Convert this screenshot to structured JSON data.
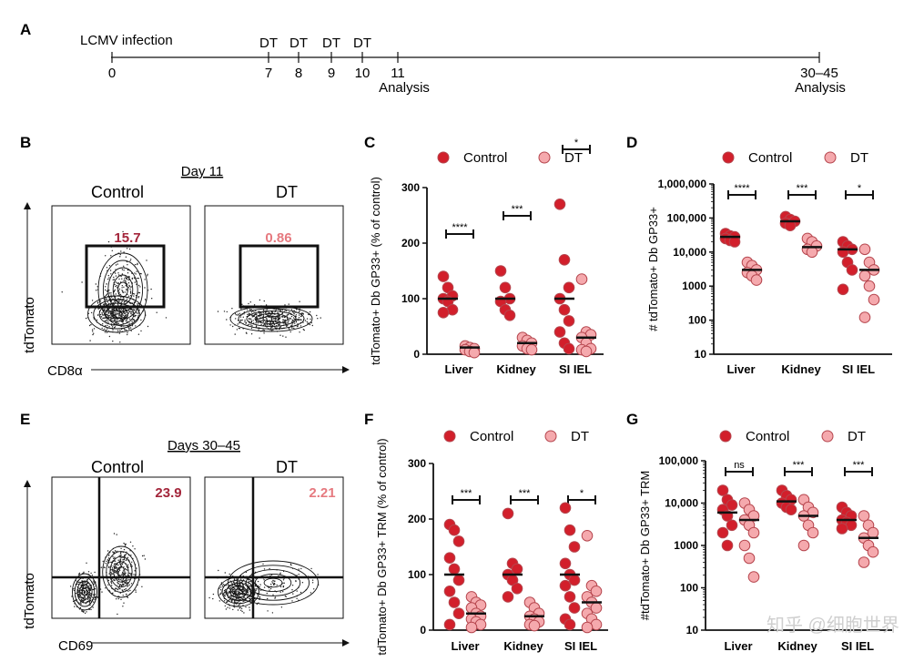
{
  "panel_letters": {
    "A": "A",
    "B": "B",
    "C": "C",
    "D": "D",
    "E": "E",
    "F": "F",
    "G": "G"
  },
  "timeline": {
    "infection_label": "LCMV infection",
    "ticks": [
      {
        "day": "0",
        "top": ""
      },
      {
        "day": "7",
        "top": "DT"
      },
      {
        "day": "8",
        "top": "DT"
      },
      {
        "day": "9",
        "top": "DT"
      },
      {
        "day": "10",
        "top": "DT"
      },
      {
        "day": "11",
        "top": ""
      },
      {
        "day": "30–45",
        "top": ""
      }
    ],
    "analysis_label": "Analysis"
  },
  "flow_B": {
    "title": "Day 11",
    "left_title": "Control",
    "right_title": "DT",
    "left_value": "15.7",
    "right_value": "0.86",
    "ylabel": "tdTomato",
    "xlabel": "CD8α",
    "value_colors": {
      "control": "#a3253a",
      "dt": "#e6797f"
    }
  },
  "flow_E": {
    "title": "Days 30–45",
    "left_title": "Control",
    "right_title": "DT",
    "left_value": "23.9",
    "right_value": "2.21",
    "ylabel": "tdTomato",
    "xlabel": "CD69"
  },
  "legend": {
    "control": "Control",
    "dt": "DT"
  },
  "colors": {
    "control": "#d21f2b",
    "dt": "#f5a9ad",
    "edge": "#b5454d"
  },
  "chart_data": [
    {
      "id": "C",
      "type": "scatter",
      "ylabel_lines": [
        "tdTomato",
        "D",
        "GP33",
        "(% of control)"
      ],
      "ylabel": "tdTomato+ Db GP33+ (% of control)",
      "categories": [
        "Liver",
        "Kidney",
        "SI IEL"
      ],
      "yticks": [
        "0",
        "100",
        "200",
        "300"
      ],
      "ylim": [
        0,
        300
      ],
      "significance": [
        "****",
        "***",
        "*"
      ],
      "series": [
        {
          "name": "Control",
          "means": [
            100,
            100,
            100
          ],
          "points": [
            [
              140,
              120,
              105,
              100,
              95,
              80,
              75
            ],
            [
              150,
              120,
              100,
              95,
              80,
              70
            ],
            [
              270,
              170,
              120,
              100,
              80,
              60,
              40,
              20,
              10
            ]
          ]
        },
        {
          "name": "DT",
          "means": [
            12,
            20,
            30
          ],
          "points": [
            [
              15,
              12,
              10,
              8,
              5,
              3
            ],
            [
              30,
              25,
              20,
              15,
              10,
              8
            ],
            [
              135,
              40,
              35,
              30,
              20,
              10,
              8,
              5
            ]
          ]
        }
      ]
    },
    {
      "id": "D",
      "type": "scatter",
      "scale": "log",
      "ylabel": "# tdTomato+ Db GP33+",
      "categories": [
        "Liver",
        "Kidney",
        "SI IEL"
      ],
      "yticks": [
        "10",
        "100",
        "1000",
        "10,000",
        "100,000",
        "1,000,000"
      ],
      "ylim": [
        10,
        1000000
      ],
      "significance": [
        "****",
        "***",
        "*"
      ],
      "series": [
        {
          "name": "Control",
          "means": [
            28000,
            80000,
            12000
          ],
          "points": [
            [
              35000,
              30000,
              28000,
              25000,
              22000,
              20000
            ],
            [
              110000,
              90000,
              80000,
              70000,
              60000
            ],
            [
              20000,
              15000,
              12000,
              10000,
              5000,
              3000,
              800
            ]
          ]
        },
        {
          "name": "DT",
          "means": [
            3000,
            14000,
            3000
          ],
          "points": [
            [
              5000,
              4000,
              3000,
              2500,
              2000,
              1500
            ],
            [
              25000,
              20000,
              15000,
              12000,
              10000
            ],
            [
              12000,
              5000,
              3000,
              2000,
              1000,
              400,
              120
            ]
          ]
        }
      ]
    },
    {
      "id": "F",
      "type": "scatter",
      "ylabel": "tdTomato+ Db GP33+ TRM (% of control)",
      "categories": [
        "Liver",
        "Kidney",
        "SI IEL"
      ],
      "yticks": [
        "0",
        "100",
        "200",
        "300"
      ],
      "ylim": [
        0,
        300
      ],
      "significance": [
        "***",
        "***",
        "*"
      ],
      "series": [
        {
          "name": "Control",
          "means": [
            100,
            100,
            100
          ],
          "points": [
            [
              190,
              180,
              160,
              130,
              110,
              90,
              70,
              50,
              30,
              10
            ],
            [
              210,
              120,
              110,
              100,
              90,
              75,
              60
            ],
            [
              220,
              180,
              150,
              120,
              100,
              90,
              80,
              60,
              40,
              20,
              10
            ]
          ]
        },
        {
          "name": "DT",
          "means": [
            30,
            25,
            50
          ],
          "points": [
            [
              60,
              50,
              45,
              40,
              30,
              25,
              20,
              15,
              10,
              5
            ],
            [
              50,
              40,
              30,
              25,
              20,
              15,
              10,
              8
            ],
            [
              170,
              80,
              70,
              60,
              50,
              40,
              30,
              20,
              10,
              5
            ]
          ]
        }
      ]
    },
    {
      "id": "G",
      "type": "scatter",
      "scale": "log",
      "ylabel": "#tdTomato+ Db GP33+ TRM",
      "categories": [
        "Liver",
        "Kidney",
        "SI IEL"
      ],
      "yticks": [
        "10",
        "100",
        "1000",
        "10,000",
        "100,000"
      ],
      "ylim": [
        10,
        100000
      ],
      "significance": [
        "ns",
        "***",
        "***"
      ],
      "series": [
        {
          "name": "Control",
          "means": [
            6000,
            11000,
            4000
          ],
          "points": [
            [
              20000,
              12000,
              9000,
              7000,
              5000,
              3000,
              2000,
              1000
            ],
            [
              20000,
              15000,
              12000,
              10000,
              8000,
              7000
            ],
            [
              8000,
              6000,
              5000,
              4000,
              3500,
              3000,
              2500
            ]
          ]
        },
        {
          "name": "DT",
          "means": [
            4000,
            5000,
            1500
          ],
          "points": [
            [
              10000,
              7000,
              5000,
              4000,
              3000,
              2000,
              1000,
              500,
              180
            ],
            [
              12000,
              8000,
              6000,
              5000,
              3000,
              2000,
              1000
            ],
            [
              5000,
              3000,
              2000,
              1500,
              1000,
              700,
              400
            ]
          ]
        }
      ]
    }
  ],
  "watermark": "知乎 @细胞世界"
}
